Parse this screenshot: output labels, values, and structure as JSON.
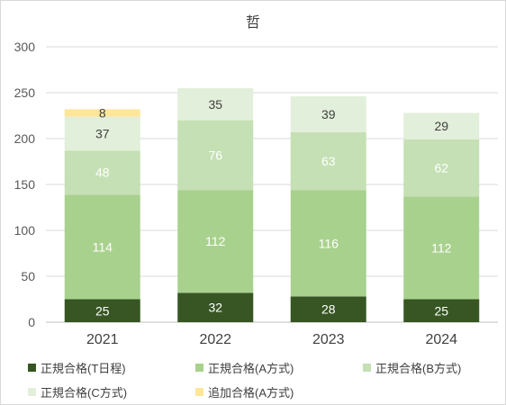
{
  "chart_data": {
    "type": "bar",
    "stacked": true,
    "title": "哲",
    "categories": [
      "2021",
      "2022",
      "2023",
      "2024"
    ],
    "ylim": [
      0,
      300
    ],
    "yticks": [
      "0",
      "50",
      "100",
      "150",
      "200",
      "250",
      "300"
    ],
    "grid": true,
    "legend_position": "bottom",
    "series": [
      {
        "name": "正規合格(T日程)",
        "color": "#375623",
        "label_color": "#ffffff",
        "values": [
          25,
          32,
          28,
          25
        ]
      },
      {
        "name": "正規合格(A方式)",
        "color": "#a9d18e",
        "label_color": "#ffffff",
        "values": [
          114,
          112,
          116,
          112
        ]
      },
      {
        "name": "正規合格(B方式)",
        "color": "#c5e0b4",
        "label_color": "#ffffff",
        "values": [
          48,
          76,
          63,
          62
        ]
      },
      {
        "name": "正規合格(C方式)",
        "color": "#e2efda",
        "label_color": "#404040",
        "values": [
          37,
          35,
          39,
          29
        ]
      },
      {
        "name": "追加合格(A方式)",
        "color": "#ffe699",
        "label_color": "#404040",
        "values": [
          8,
          null,
          null,
          null
        ]
      }
    ]
  }
}
